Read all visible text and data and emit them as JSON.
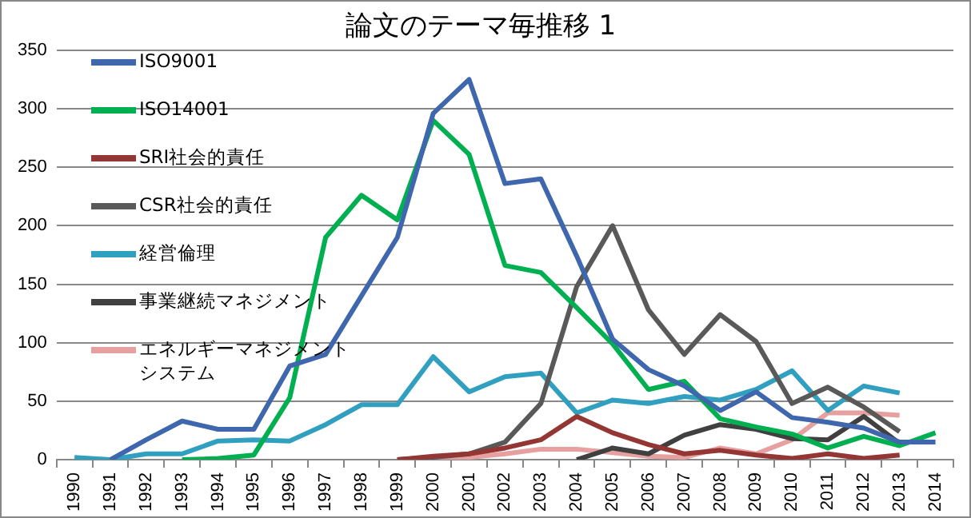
{
  "chart_data": {
    "type": "line",
    "title": "論文のテーマ毎推移 1",
    "categories": [
      "1990",
      "1991",
      "1992",
      "1993",
      "1994",
      "1995",
      "1996",
      "1997",
      "1998",
      "1999",
      "2000",
      "2001",
      "2002",
      "2003",
      "2004",
      "2005",
      "2006",
      "2007",
      "2008",
      "2009",
      "2010",
      "2011",
      "2012",
      "2013",
      "2014"
    ],
    "series": [
      {
        "name": "ISO9001",
        "color": "#3f67ae",
        "values": [
          null,
          0,
          17,
          33,
          26,
          26,
          80,
          90,
          140,
          190,
          296,
          325,
          236,
          240,
          174,
          103,
          77,
          63,
          42,
          58,
          36,
          32,
          27,
          15,
          15
        ]
      },
      {
        "name": "ISO14001",
        "color": "#00b050",
        "values": [
          null,
          null,
          null,
          0,
          1,
          4,
          53,
          190,
          226,
          205,
          290,
          261,
          166,
          160,
          130,
          99,
          60,
          67,
          35,
          28,
          22,
          10,
          20,
          12,
          23
        ]
      },
      {
        "name": "SRI社会的責任",
        "color": "#943634",
        "values": [
          null,
          null,
          null,
          null,
          null,
          null,
          null,
          null,
          null,
          0,
          3,
          5,
          10,
          17,
          37,
          23,
          13,
          5,
          8,
          4,
          1,
          5,
          1,
          4,
          null
        ]
      },
      {
        "name": "CSR社会的責任",
        "color": "#595959",
        "values": [
          null,
          null,
          null,
          null,
          null,
          null,
          null,
          null,
          null,
          0,
          2,
          5,
          15,
          48,
          148,
          200,
          128,
          90,
          124,
          101,
          48,
          62,
          45,
          24,
          null
        ]
      },
      {
        "name": "経営倫理",
        "color": "#31a0c0",
        "values": [
          2,
          0,
          5,
          5,
          16,
          17,
          16,
          30,
          47,
          47,
          88,
          58,
          71,
          74,
          40,
          51,
          48,
          54,
          51,
          60,
          76,
          42,
          63,
          57,
          null
        ]
      },
      {
        "name": "事業継続マネジメント",
        "color": "#404040",
        "values": [
          null,
          null,
          null,
          null,
          null,
          null,
          null,
          null,
          null,
          null,
          null,
          null,
          null,
          null,
          0,
          10,
          5,
          21,
          30,
          26,
          18,
          17,
          37,
          14,
          null
        ]
      },
      {
        "name": "エネルギーマネジメントシステム",
        "color": "#e6a0a0",
        "values": [
          null,
          null,
          null,
          null,
          null,
          null,
          null,
          null,
          null,
          null,
          0,
          2,
          5,
          9,
          9,
          6,
          3,
          2,
          10,
          5,
          17,
          40,
          40,
          38,
          null
        ]
      }
    ],
    "ylim": [
      0,
      350
    ],
    "yticks": [
      0,
      50,
      100,
      150,
      200,
      250,
      300,
      350
    ],
    "grid": "y",
    "legend": "top left",
    "marker": "none",
    "line_style": "solid"
  }
}
